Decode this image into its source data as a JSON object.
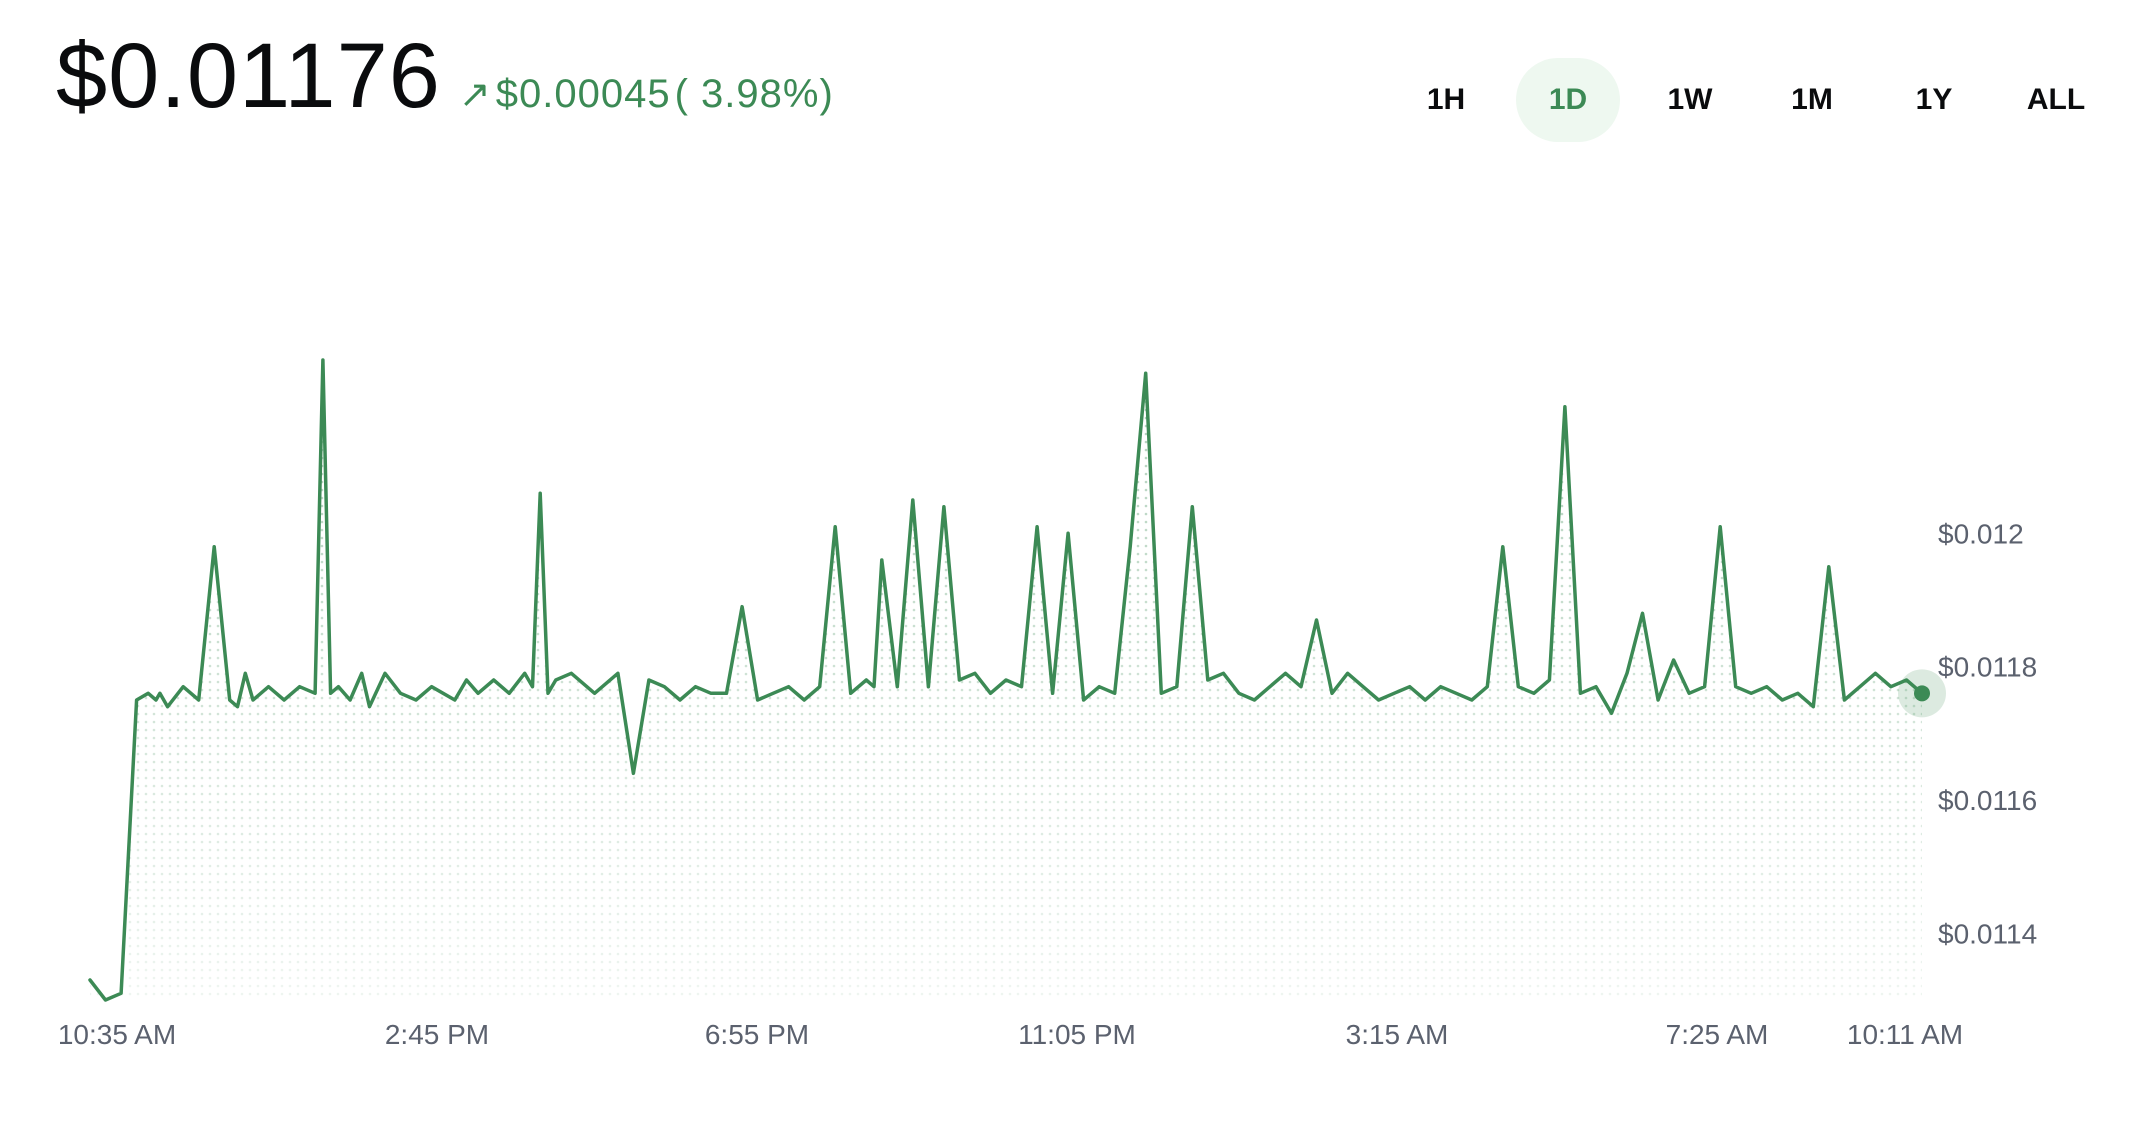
{
  "header": {
    "price": "$0.01176",
    "change_icon": "arrow-up-right-icon",
    "change_icon_glyph": "↗",
    "change_amount": "$0.00045",
    "change_percent": "( 3.98%)"
  },
  "range_tabs": [
    {
      "label": "1H",
      "active": false
    },
    {
      "label": "1D",
      "active": true
    },
    {
      "label": "1W",
      "active": false
    },
    {
      "label": "1M",
      "active": false
    },
    {
      "label": "1Y",
      "active": false
    },
    {
      "label": "ALL",
      "active": false
    }
  ],
  "colors": {
    "line": "#3c8a55",
    "fill_dots": "#3c8a55",
    "active_tab_bg": "#eef8f0",
    "label_gray": "#5b616e"
  },
  "chart_data": {
    "type": "area",
    "title": "",
    "xlabel": "",
    "ylabel": "",
    "x_tick_labels": [
      "10:35 AM",
      "2:45 PM",
      "6:55 PM",
      "11:05 PM",
      "3:15 AM",
      "7:25 AM",
      "10:11 AM"
    ],
    "y_tick_labels": [
      "$0.012",
      "$0.0118",
      "$0.0116",
      "$0.0114"
    ],
    "y_ticks": [
      0.012,
      0.0118,
      0.0116,
      0.0114
    ],
    "ylim": [
      0.0113,
      0.01235
    ],
    "grid": false,
    "legend": "none",
    "x_hours_since_start": [
      0.0,
      0.2,
      0.4,
      0.6,
      0.75,
      0.85,
      0.9,
      1.0,
      1.2,
      1.4,
      1.6,
      1.8,
      1.9,
      2.0,
      2.1,
      2.3,
      2.4,
      2.5,
      2.7,
      2.9,
      3.0,
      3.1,
      3.2,
      3.35,
      3.5,
      3.6,
      3.8,
      4.0,
      4.2,
      4.4,
      4.7,
      4.85,
      5.0,
      5.2,
      5.4,
      5.6,
      5.7,
      5.8,
      5.9,
      6.0,
      6.2,
      6.5,
      6.8,
      7.0,
      7.2,
      7.4,
      7.6,
      7.8,
      8.0,
      8.2,
      8.4,
      8.6,
      8.8,
      9.0,
      9.2,
      9.4,
      9.6,
      9.8,
      10.0,
      10.1,
      10.2,
      10.4,
      10.6,
      10.8,
      11.0,
      11.2,
      11.4,
      11.6,
      11.8,
      12.0,
      12.2,
      12.4,
      12.6,
      12.8,
      13.0,
      13.2,
      13.4,
      13.6,
      13.8,
      14.0,
      14.2,
      14.4,
      14.6,
      14.8,
      15.0,
      15.2,
      15.4,
      15.6,
      15.8,
      16.0,
      16.2,
      16.4,
      16.6,
      16.8,
      17.0,
      17.2,
      17.4,
      17.6,
      17.8,
      18.0,
      18.2,
      18.4,
      18.6,
      18.8,
      19.0,
      19.2,
      19.4,
      19.6,
      19.8,
      20.0,
      20.2,
      20.4,
      20.6,
      20.8,
      21.0,
      21.2,
      21.4,
      21.6,
      21.8,
      22.0,
      22.2,
      22.4,
      22.6,
      22.8,
      23.0,
      23.2,
      23.4,
      23.6
    ],
    "series": [
      {
        "values": [
          0.01133,
          0.0113,
          0.01131,
          0.01175,
          0.01176,
          0.01175,
          0.01176,
          0.01174,
          0.01177,
          0.01175,
          0.01198,
          0.01175,
          0.01174,
          0.01179,
          0.01175,
          0.01177,
          0.01176,
          0.01175,
          0.01177,
          0.01176,
          0.01226,
          0.01176,
          0.01177,
          0.01175,
          0.01179,
          0.01174,
          0.01179,
          0.01176,
          0.01175,
          0.01177,
          0.01175,
          0.01178,
          0.01176,
          0.01178,
          0.01176,
          0.01179,
          0.01177,
          0.01206,
          0.01176,
          0.01178,
          0.01179,
          0.01176,
          0.01179,
          0.01164,
          0.01178,
          0.01177,
          0.01175,
          0.01177,
          0.01176,
          0.01176,
          0.01189,
          0.01175,
          0.01176,
          0.01177,
          0.01175,
          0.01177,
          0.01201,
          0.01176,
          0.01178,
          0.01177,
          0.01196,
          0.01177,
          0.01205,
          0.01177,
          0.01204,
          0.01178,
          0.01179,
          0.01176,
          0.01178,
          0.01177,
          0.01201,
          0.01176,
          0.012,
          0.01175,
          0.01177,
          0.01176,
          0.01198,
          0.01224,
          0.01176,
          0.01177,
          0.01204,
          0.01178,
          0.01179,
          0.01176,
          0.01175,
          0.01177,
          0.01179,
          0.01177,
          0.01187,
          0.01176,
          0.01179,
          0.01177,
          0.01175,
          0.01176,
          0.01177,
          0.01175,
          0.01177,
          0.01176,
          0.01175,
          0.01177,
          0.01198,
          0.01177,
          0.01176,
          0.01178,
          0.01219,
          0.01176,
          0.01177,
          0.01173,
          0.01179,
          0.01188,
          0.01175,
          0.01181,
          0.01176,
          0.01177,
          0.01201,
          0.01177,
          0.01176,
          0.01177,
          0.01175,
          0.01176,
          0.01174,
          0.01195,
          0.01175,
          0.01177,
          0.01179,
          0.01177,
          0.01178,
          0.01176
        ]
      }
    ],
    "current_value": 0.01176,
    "current_label": "10:11 AM"
  }
}
